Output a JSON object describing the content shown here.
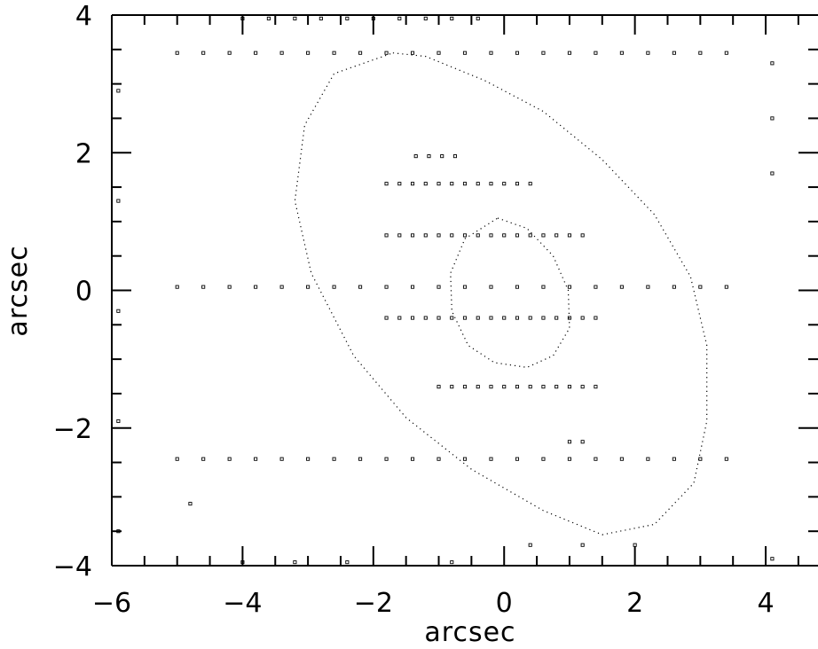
{
  "chart_data": {
    "type": "scatter",
    "title": "",
    "xlabel": "arcsec",
    "ylabel": "arcsec",
    "xlim": [
      -6,
      4.8
    ],
    "ylim": [
      -4,
      4
    ],
    "x_ticks": [
      -6,
      -4,
      -2,
      0,
      2,
      4
    ],
    "y_ticks": [
      -4,
      -2,
      0,
      2,
      4
    ],
    "x_tick_labels": [
      "−6",
      "−4",
      "−2",
      "0",
      "2",
      "4"
    ],
    "y_tick_labels": [
      "−4",
      "−2",
      "0",
      "2",
      "4"
    ],
    "grid": false,
    "legend": "none",
    "marker_color": "#000000",
    "series": [
      {
        "marker": "small-square",
        "points": [
          [
            -5.0,
            3.45
          ],
          [
            -4.6,
            3.45
          ],
          [
            -4.2,
            3.45
          ],
          [
            -3.8,
            3.45
          ],
          [
            -3.4,
            3.45
          ],
          [
            -3.0,
            3.45
          ],
          [
            -2.6,
            3.45
          ],
          [
            -2.2,
            3.45
          ],
          [
            -1.8,
            3.45
          ],
          [
            -1.4,
            3.45
          ],
          [
            -1.0,
            3.45
          ],
          [
            -0.6,
            3.45
          ],
          [
            -0.2,
            3.45
          ],
          [
            0.2,
            3.45
          ],
          [
            0.6,
            3.45
          ],
          [
            1.0,
            3.45
          ],
          [
            1.4,
            3.45
          ],
          [
            1.8,
            3.45
          ],
          [
            2.2,
            3.45
          ],
          [
            2.6,
            3.45
          ],
          [
            3.0,
            3.45
          ],
          [
            3.4,
            3.45
          ],
          [
            -5.0,
            0.05
          ],
          [
            -4.6,
            0.05
          ],
          [
            -4.2,
            0.05
          ],
          [
            -3.8,
            0.05
          ],
          [
            -3.4,
            0.05
          ],
          [
            -3.0,
            0.05
          ],
          [
            -2.6,
            0.05
          ],
          [
            -2.2,
            0.05
          ],
          [
            -1.8,
            0.05
          ],
          [
            -1.4,
            0.05
          ],
          [
            -1.0,
            0.05
          ],
          [
            -0.6,
            0.05
          ],
          [
            -0.2,
            0.05
          ],
          [
            0.2,
            0.05
          ],
          [
            0.6,
            0.05
          ],
          [
            1.0,
            0.05
          ],
          [
            1.4,
            0.05
          ],
          [
            1.8,
            0.05
          ],
          [
            2.2,
            0.05
          ],
          [
            2.6,
            0.05
          ],
          [
            3.0,
            0.05
          ],
          [
            3.4,
            0.05
          ],
          [
            -5.0,
            -2.45
          ],
          [
            -4.6,
            -2.45
          ],
          [
            -4.2,
            -2.45
          ],
          [
            -3.8,
            -2.45
          ],
          [
            -3.4,
            -2.45
          ],
          [
            -3.0,
            -2.45
          ],
          [
            -2.6,
            -2.45
          ],
          [
            -2.2,
            -2.45
          ],
          [
            -1.8,
            -2.45
          ],
          [
            -1.4,
            -2.45
          ],
          [
            -1.0,
            -2.45
          ],
          [
            -0.6,
            -2.45
          ],
          [
            -0.2,
            -2.45
          ],
          [
            0.2,
            -2.45
          ],
          [
            0.6,
            -2.45
          ],
          [
            1.0,
            -2.45
          ],
          [
            1.4,
            -2.45
          ],
          [
            1.8,
            -2.45
          ],
          [
            2.2,
            -2.45
          ],
          [
            2.6,
            -2.45
          ],
          [
            3.0,
            -2.45
          ],
          [
            3.4,
            -2.45
          ],
          [
            -1.35,
            1.95
          ],
          [
            -1.15,
            1.95
          ],
          [
            -0.95,
            1.95
          ],
          [
            -0.75,
            1.95
          ],
          [
            -1.8,
            1.55
          ],
          [
            -1.6,
            1.55
          ],
          [
            -1.4,
            1.55
          ],
          [
            -1.2,
            1.55
          ],
          [
            -1.0,
            1.55
          ],
          [
            -0.8,
            1.55
          ],
          [
            -0.6,
            1.55
          ],
          [
            -0.4,
            1.55
          ],
          [
            -0.2,
            1.55
          ],
          [
            0.0,
            1.55
          ],
          [
            0.2,
            1.55
          ],
          [
            0.4,
            1.55
          ],
          [
            -1.8,
            0.8
          ],
          [
            -1.6,
            0.8
          ],
          [
            -1.4,
            0.8
          ],
          [
            -1.2,
            0.8
          ],
          [
            -1.0,
            0.8
          ],
          [
            -0.8,
            0.8
          ],
          [
            -0.6,
            0.8
          ],
          [
            -0.4,
            0.8
          ],
          [
            -0.2,
            0.8
          ],
          [
            0.0,
            0.8
          ],
          [
            0.2,
            0.8
          ],
          [
            0.4,
            0.8
          ],
          [
            0.6,
            0.8
          ],
          [
            0.8,
            0.8
          ],
          [
            1.0,
            0.8
          ],
          [
            1.2,
            0.8
          ],
          [
            -1.8,
            -0.4
          ],
          [
            -1.6,
            -0.4
          ],
          [
            -1.4,
            -0.4
          ],
          [
            -1.2,
            -0.4
          ],
          [
            -1.0,
            -0.4
          ],
          [
            -0.8,
            -0.4
          ],
          [
            -0.6,
            -0.4
          ],
          [
            -0.4,
            -0.4
          ],
          [
            -0.2,
            -0.4
          ],
          [
            0.0,
            -0.4
          ],
          [
            0.2,
            -0.4
          ],
          [
            0.4,
            -0.4
          ],
          [
            0.6,
            -0.4
          ],
          [
            0.8,
            -0.4
          ],
          [
            1.0,
            -0.4
          ],
          [
            1.2,
            -0.4
          ],
          [
            1.4,
            -0.4
          ],
          [
            -1.0,
            -1.4
          ],
          [
            -0.8,
            -1.4
          ],
          [
            -0.6,
            -1.4
          ],
          [
            -0.4,
            -1.4
          ],
          [
            -0.2,
            -1.4
          ],
          [
            0.0,
            -1.4
          ],
          [
            0.2,
            -1.4
          ],
          [
            0.4,
            -1.4
          ],
          [
            0.6,
            -1.4
          ],
          [
            0.8,
            -1.4
          ],
          [
            1.0,
            -1.4
          ],
          [
            1.2,
            -1.4
          ],
          [
            1.4,
            -1.4
          ],
          [
            1.0,
            -2.2
          ],
          [
            1.2,
            -2.2
          ],
          [
            -4.0,
            3.95
          ],
          [
            -3.6,
            3.95
          ],
          [
            -3.2,
            3.95
          ],
          [
            -2.8,
            3.95
          ],
          [
            -2.4,
            3.95
          ],
          [
            -2.0,
            3.95
          ],
          [
            -1.6,
            3.95
          ],
          [
            -1.2,
            3.95
          ],
          [
            -0.8,
            3.95
          ],
          [
            -0.4,
            3.95
          ],
          [
            -4.0,
            -3.95
          ],
          [
            -3.2,
            -3.95
          ],
          [
            -2.4,
            -3.95
          ],
          [
            -0.8,
            -3.95
          ],
          [
            0.4,
            -3.7
          ],
          [
            1.2,
            -3.7
          ],
          [
            2.0,
            -3.7
          ],
          [
            -5.9,
            2.9
          ],
          [
            -5.9,
            1.3
          ],
          [
            -5.9,
            -0.3
          ],
          [
            -5.9,
            -1.9
          ],
          [
            -5.9,
            -3.5
          ],
          [
            -4.8,
            -3.1
          ],
          [
            4.1,
            3.3
          ],
          [
            4.1,
            2.5
          ],
          [
            4.1,
            1.7
          ],
          [
            4.1,
            -3.9
          ]
        ]
      },
      {
        "marker": "dotted-contour",
        "points": [
          [
            -1.7,
            3.45
          ],
          [
            -1.2,
            3.4
          ],
          [
            -0.3,
            3.05
          ],
          [
            0.6,
            2.6
          ],
          [
            1.5,
            1.9
          ],
          [
            2.3,
            1.1
          ],
          [
            2.85,
            0.2
          ],
          [
            3.1,
            -0.8
          ],
          [
            3.1,
            -1.9
          ],
          [
            2.9,
            -2.8
          ],
          [
            2.3,
            -3.4
          ],
          [
            1.5,
            -3.55
          ],
          [
            0.6,
            -3.2
          ],
          [
            -0.5,
            -2.6
          ],
          [
            -1.5,
            -1.85
          ],
          [
            -2.3,
            -0.95
          ],
          [
            -2.95,
            0.25
          ],
          [
            -3.2,
            1.3
          ],
          [
            -3.05,
            2.4
          ],
          [
            -2.6,
            3.15
          ],
          [
            -1.7,
            3.45
          ]
        ]
      },
      {
        "marker": "dotted-contour",
        "points": [
          [
            -0.1,
            1.05
          ],
          [
            0.35,
            0.9
          ],
          [
            0.75,
            0.5
          ],
          [
            0.98,
            0.0
          ],
          [
            1.0,
            -0.55
          ],
          [
            0.75,
            -0.95
          ],
          [
            0.35,
            -1.12
          ],
          [
            -0.15,
            -1.05
          ],
          [
            -0.55,
            -0.8
          ],
          [
            -0.8,
            -0.3
          ],
          [
            -0.82,
            0.25
          ],
          [
            -0.6,
            0.75
          ],
          [
            -0.1,
            1.05
          ]
        ]
      }
    ]
  }
}
